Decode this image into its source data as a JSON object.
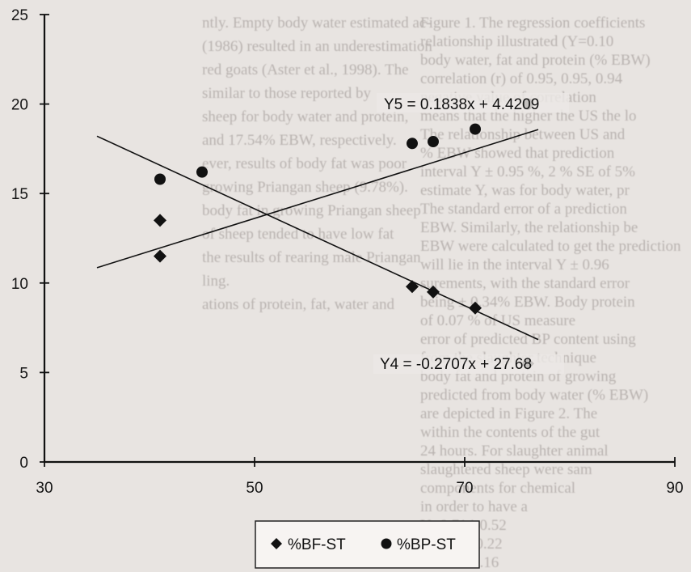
{
  "chart_data": {
    "type": "scatter",
    "x_ticks": [
      "30",
      "50",
      "70",
      "90"
    ],
    "y_ticks": [
      "0",
      "5",
      "10",
      "15",
      "20",
      "25"
    ],
    "xlim": [
      30,
      90
    ],
    "ylim": [
      0,
      25
    ],
    "grid": false,
    "legend_position": "bottom",
    "series": [
      {
        "name": "%BF-ST",
        "marker": "diamond",
        "color": "#111111",
        "points": [
          [
            41,
            13.5
          ],
          [
            41,
            11.5
          ],
          [
            65,
            9.8
          ],
          [
            67,
            9.5
          ],
          [
            71,
            8.6
          ],
          [
            76,
            5.5
          ]
        ],
        "trendline": {
          "label": "Y4 = -0.2707x + 27.68",
          "slope": -0.2707,
          "intercept": 27.68,
          "x_range": [
            35,
            77
          ]
        }
      },
      {
        "name": "%BP-ST",
        "marker": "circle",
        "color": "#111111",
        "points": [
          [
            41,
            15.8
          ],
          [
            45,
            16.2
          ],
          [
            65,
            17.8
          ],
          [
            67,
            17.9
          ],
          [
            71,
            18.6
          ],
          [
            76,
            20.0
          ]
        ],
        "trendline": {
          "label": "Y5 = 0.1838x + 4.4209",
          "slope": 0.1838,
          "intercept": 4.4209,
          "x_range": [
            35,
            77
          ]
        }
      }
    ]
  },
  "background_text": [
    "ntly. Empty body water estimated ac-",
    "(1986) resulted in an underestimation",
    "red goats (Aster et al., 1998). The",
    "similar to those reported by",
    "sheep for body water and protein,",
    "and 17.54% EBW, respectively.",
    "ever, results of body fat was poor",
    "growing Priangan sheep (9.78%).",
    "body fat in growing Priangan sheep",
    "of sheep tended to have low fat",
    "the results of rearing male Priangan",
    "ling.",
    "ations of protein, fat, water and",
    "Figure 1. The regression coefficients",
    "relationship illustrated (Y=0.10",
    "body water, fat and protein (% EBW)",
    "correlation (r) of 0.95, 0.95, 0.94",
    "negative value of correlation",
    "means that the higher the US the lo",
    "The relationship between US and",
    "% EBW showed that prediction",
    "interval Y ± 0.95 %, 2 % SE of 5%",
    "estimate Y, was for body water, pr",
    "The standard error of a prediction",
    "EBW. Similarly, the relationship be",
    "EBW were calculated to get the prediction",
    "will lie in the interval Y ± 0.96",
    "surements, with the standard error",
    "being ± 0.34% EBW. Body protein",
    "of 0.07 % of US measure",
    "error of predicted BP content using",
    "from the slaughter technique",
    "body fat and protein of growing",
    "predicted from body water (% EBW)",
    "are depicted in Figure 2. The",
    "within the contents of the gut",
    "24 hours. For slaughter animal",
    "slaughtered sheep were sam",
    "components for chemical",
    "in order to have a",
    "Y=0.714-0.52",
    "Y=0.84+0.22",
    "Y=0.23-0.16"
  ]
}
